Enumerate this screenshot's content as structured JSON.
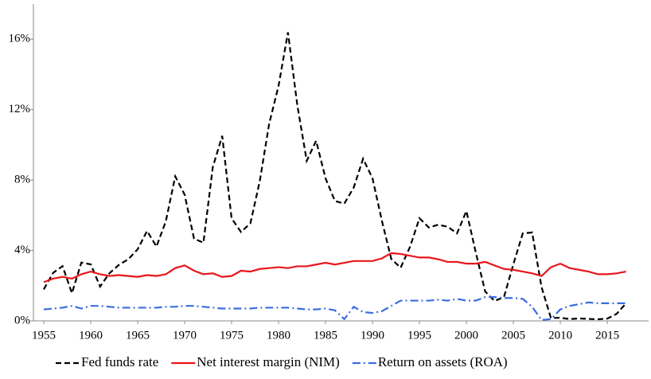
{
  "chart_data": {
    "type": "line",
    "x": [
      1955,
      1956,
      1957,
      1958,
      1959,
      1960,
      1961,
      1962,
      1963,
      1964,
      1965,
      1966,
      1967,
      1968,
      1969,
      1970,
      1971,
      1972,
      1973,
      1974,
      1975,
      1976,
      1977,
      1978,
      1979,
      1980,
      1981,
      1982,
      1983,
      1984,
      1985,
      1986,
      1987,
      1988,
      1989,
      1990,
      1991,
      1992,
      1993,
      1994,
      1995,
      1996,
      1997,
      1998,
      1999,
      2000,
      2001,
      2002,
      2003,
      2004,
      2005,
      2006,
      2007,
      2008,
      2009,
      2010,
      2011,
      2012,
      2013,
      2014,
      2015,
      2016,
      2017
    ],
    "series": [
      {
        "name": "Fed funds rate",
        "color": "#000000",
        "dash": "dashed",
        "values": [
          1.79,
          2.73,
          3.11,
          1.57,
          3.31,
          3.21,
          1.95,
          2.71,
          3.18,
          3.5,
          4.07,
          5.11,
          4.22,
          5.66,
          8.21,
          7.17,
          4.67,
          4.44,
          8.74,
          10.51,
          5.82,
          5.05,
          5.54,
          7.94,
          11.2,
          13.35,
          16.39,
          12.24,
          9.09,
          10.23,
          8.1,
          6.81,
          6.66,
          7.57,
          9.21,
          8.1,
          5.69,
          3.52,
          3.02,
          4.21,
          5.83,
          5.3,
          5.46,
          5.35,
          4.97,
          6.24,
          3.88,
          1.67,
          1.13,
          1.35,
          3.22,
          4.97,
          5.02,
          1.92,
          0.16,
          0.18,
          0.1,
          0.14,
          0.11,
          0.09,
          0.13,
          0.4,
          1.0
        ]
      },
      {
        "name": "Net interest margin (NIM)",
        "color": "#e8161b",
        "dash": "solid",
        "values": [
          2.2,
          2.4,
          2.5,
          2.4,
          2.65,
          2.8,
          2.65,
          2.55,
          2.6,
          2.55,
          2.5,
          2.6,
          2.55,
          2.65,
          3.0,
          3.15,
          2.85,
          2.65,
          2.7,
          2.5,
          2.55,
          2.85,
          2.8,
          2.95,
          3.0,
          3.05,
          3.0,
          3.1,
          3.1,
          3.2,
          3.3,
          3.2,
          3.3,
          3.4,
          3.4,
          3.4,
          3.55,
          3.85,
          3.8,
          3.7,
          3.6,
          3.6,
          3.5,
          3.35,
          3.35,
          3.25,
          3.25,
          3.35,
          3.15,
          2.95,
          2.9,
          2.8,
          2.7,
          2.55,
          3.05,
          3.25,
          3.0,
          2.9,
          2.8,
          2.65,
          2.65,
          2.7,
          2.8
        ]
      },
      {
        "name": "Return on assets (ROA)",
        "color": "#3a6de0",
        "dash": "dashdot",
        "values": [
          0.65,
          0.7,
          0.75,
          0.85,
          0.7,
          0.85,
          0.85,
          0.8,
          0.75,
          0.75,
          0.75,
          0.75,
          0.75,
          0.8,
          0.8,
          0.85,
          0.85,
          0.8,
          0.75,
          0.7,
          0.7,
          0.7,
          0.7,
          0.75,
          0.75,
          0.75,
          0.75,
          0.7,
          0.65,
          0.65,
          0.7,
          0.6,
          0.1,
          0.8,
          0.5,
          0.45,
          0.55,
          0.85,
          1.15,
          1.15,
          1.15,
          1.15,
          1.2,
          1.15,
          1.25,
          1.15,
          1.15,
          1.35,
          1.35,
          1.3,
          1.3,
          1.25,
          0.8,
          0.05,
          0.1,
          0.65,
          0.85,
          0.95,
          1.05,
          1.0,
          1.0,
          1.0,
          1.0
        ]
      }
    ],
    "xlim": [
      1953.9,
      2019.4
    ],
    "xticks": [
      1955,
      1960,
      1965,
      1970,
      1975,
      1980,
      1985,
      1990,
      1995,
      2000,
      2005,
      2010,
      2015
    ],
    "ylim": [
      0,
      18
    ],
    "yticks": [
      {
        "value": 0,
        "label": "0%"
      },
      {
        "value": 4,
        "label": "4%"
      },
      {
        "value": 8,
        "label": "8%"
      },
      {
        "value": 12,
        "label": "12%"
      },
      {
        "value": 16,
        "label": "16%"
      }
    ],
    "legend": "bottom"
  }
}
